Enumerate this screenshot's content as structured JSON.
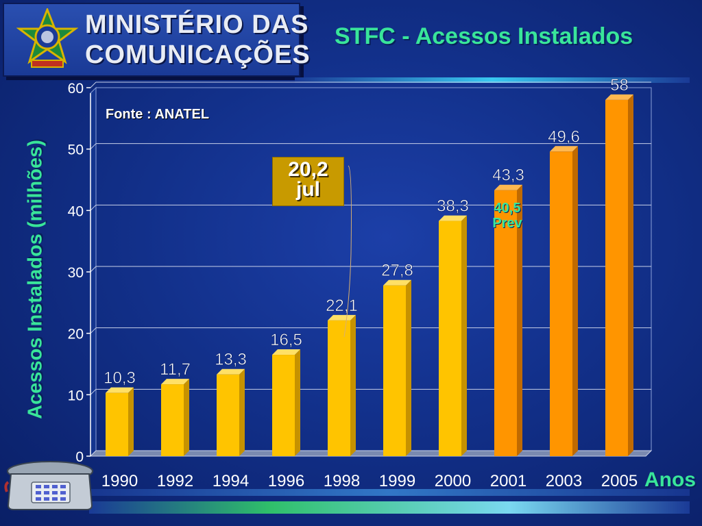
{
  "header": {
    "logo_line1": "MINISTÉRIO DAS",
    "logo_line2": "COMUNICAÇÕES",
    "title": "STFC - Acessos Instalados"
  },
  "source_note": "Fonte : ANATEL",
  "callout": {
    "value": "20,2",
    "month": "jul"
  },
  "annotation": {
    "value": "40,5",
    "label": "Prev"
  },
  "colors": {
    "actual": "#ffc400",
    "forecast": "#ff9500",
    "accent_text": "#39e59a"
  },
  "chart_data": {
    "type": "bar",
    "title": "STFC - Acessos Instalados",
    "xlabel": "Anos",
    "ylabel": "Acessos Instalados (milhões)",
    "ylim": [
      0,
      60
    ],
    "yticks": [
      0,
      10,
      20,
      30,
      40,
      50,
      60
    ],
    "grid": true,
    "categories": [
      "1990",
      "1992",
      "1994",
      "1996",
      "1998",
      "1999",
      "2000",
      "2001",
      "2003",
      "2005"
    ],
    "values": [
      10.3,
      11.7,
      13.3,
      16.5,
      22.1,
      27.8,
      38.3,
      43.3,
      49.6,
      58
    ],
    "value_labels": [
      "10,3",
      "11,7",
      "13,3",
      "16,5",
      "22,1",
      "27,8",
      "38,3",
      "43,3",
      "49,6",
      "58"
    ],
    "forecast_from_index": 7
  }
}
